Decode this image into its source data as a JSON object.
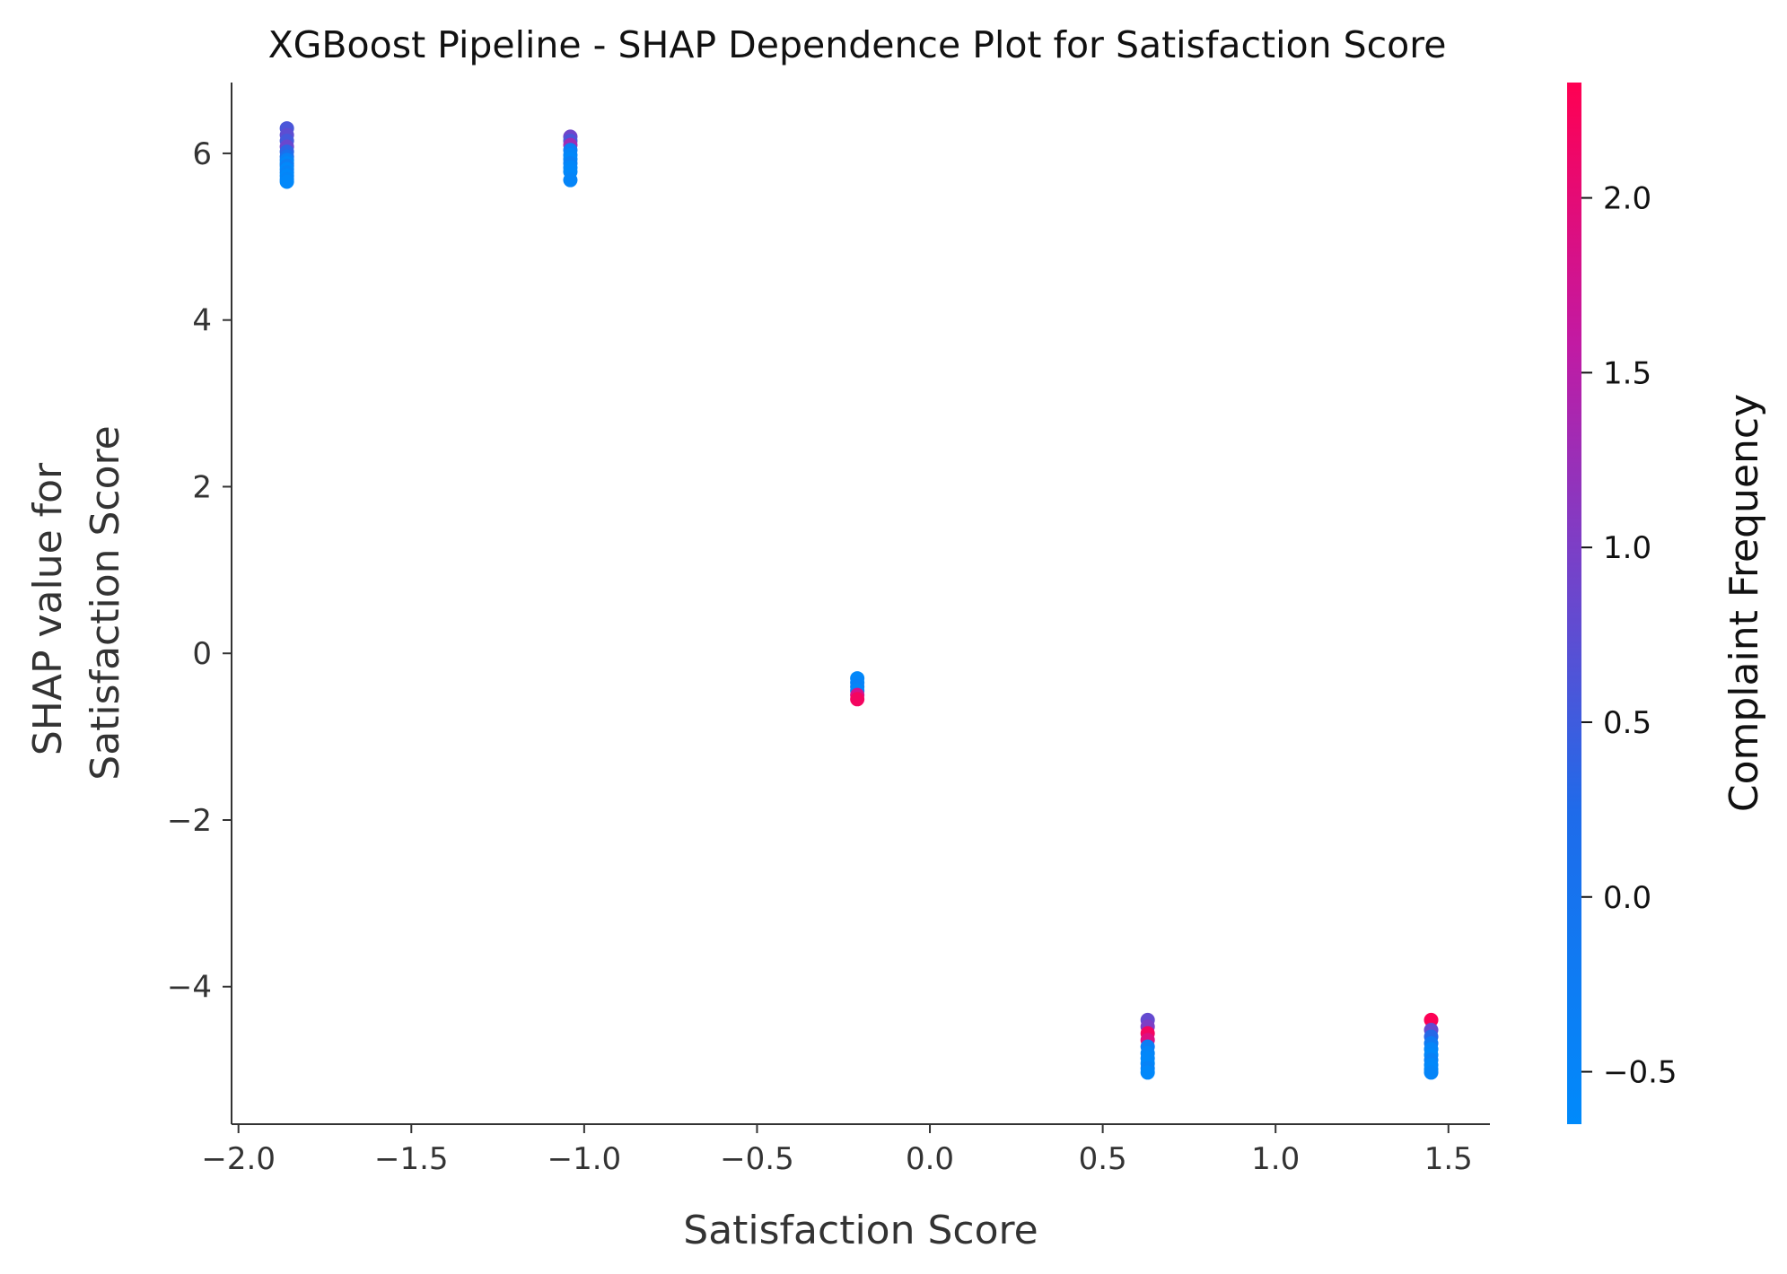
{
  "chart_data": {
    "type": "scatter",
    "title": "XGBoost Pipeline - SHAP Dependence Plot for Satisfaction Score",
    "xlabel": "Satisfaction Score",
    "ylabel": [
      "SHAP value for",
      "Satisfaction Score"
    ],
    "xlim": [
      -2.02,
      1.62
    ],
    "ylim": [
      -5.65,
      6.85
    ],
    "xticks": [
      -2.0,
      -1.5,
      -1.0,
      -0.5,
      0.0,
      0.5,
      1.0,
      1.5
    ],
    "xtick_labels": [
      "−2.0",
      "−1.5",
      "−1.0",
      "−0.5",
      "0.0",
      "0.5",
      "1.0",
      "1.5"
    ],
    "yticks": [
      6,
      4,
      2,
      0,
      -2,
      -4
    ],
    "ytick_labels": [
      "6",
      "4",
      "2",
      "0",
      "−2",
      "−4"
    ],
    "grid": false,
    "colorbar": {
      "label": "Complaint Frequency",
      "range": [
        -0.65,
        2.33
      ],
      "ticks": [
        2.0,
        1.5,
        1.0,
        0.5,
        0.0,
        -0.5
      ],
      "tick_labels": [
        "2.0",
        "1.5",
        "1.0",
        "0.5",
        "0.0",
        "−0.5"
      ],
      "colors": [
        "#008afb",
        "#ff0052"
      ]
    },
    "points": [
      {
        "x": -1.86,
        "y": 6.3,
        "c": 0.6
      },
      {
        "x": -1.86,
        "y": 6.22,
        "c": 0.75
      },
      {
        "x": -1.86,
        "y": 6.15,
        "c": 0.55
      },
      {
        "x": -1.86,
        "y": 6.08,
        "c": 0.85
      },
      {
        "x": -1.86,
        "y": 6.02,
        "c": 0.35
      },
      {
        "x": -1.86,
        "y": 5.96,
        "c": 0.1
      },
      {
        "x": -1.86,
        "y": 5.92,
        "c": -0.4
      },
      {
        "x": -1.86,
        "y": 5.88,
        "c": -0.55
      },
      {
        "x": -1.86,
        "y": 5.85,
        "c": -0.3
      },
      {
        "x": -1.86,
        "y": 5.81,
        "c": -0.6
      },
      {
        "x": -1.86,
        "y": 5.77,
        "c": -0.45
      },
      {
        "x": -1.86,
        "y": 5.73,
        "c": -0.6
      },
      {
        "x": -1.86,
        "y": 5.69,
        "c": -0.5
      },
      {
        "x": -1.86,
        "y": 5.66,
        "c": -0.6
      },
      {
        "x": -1.04,
        "y": 6.2,
        "c": 0.9
      },
      {
        "x": -1.04,
        "y": 6.15,
        "c": 0.6
      },
      {
        "x": -1.04,
        "y": 6.1,
        "c": 1.3
      },
      {
        "x": -1.04,
        "y": 6.04,
        "c": -0.3
      },
      {
        "x": -1.04,
        "y": 5.98,
        "c": -0.5
      },
      {
        "x": -1.04,
        "y": 5.93,
        "c": -0.6
      },
      {
        "x": -1.04,
        "y": 5.88,
        "c": -0.4
      },
      {
        "x": -1.04,
        "y": 5.83,
        "c": -0.55
      },
      {
        "x": -1.04,
        "y": 5.78,
        "c": -0.6
      },
      {
        "x": -1.04,
        "y": 5.68,
        "c": -0.5
      },
      {
        "x": -0.21,
        "y": -0.3,
        "c": -0.6
      },
      {
        "x": -0.21,
        "y": -0.35,
        "c": -0.5
      },
      {
        "x": -0.21,
        "y": -0.4,
        "c": -0.4
      },
      {
        "x": -0.21,
        "y": -0.45,
        "c": -0.55
      },
      {
        "x": -0.21,
        "y": -0.5,
        "c": 1.8
      },
      {
        "x": -0.21,
        "y": -0.55,
        "c": 2.2
      },
      {
        "x": 0.63,
        "y": -4.4,
        "c": 0.8
      },
      {
        "x": 0.63,
        "y": -4.48,
        "c": 1.0
      },
      {
        "x": 0.63,
        "y": -4.56,
        "c": 2.2
      },
      {
        "x": 0.63,
        "y": -4.64,
        "c": 1.9
      },
      {
        "x": 0.63,
        "y": -4.72,
        "c": -0.3
      },
      {
        "x": 0.63,
        "y": -4.8,
        "c": -0.5
      },
      {
        "x": 0.63,
        "y": -4.86,
        "c": -0.55
      },
      {
        "x": 0.63,
        "y": -4.92,
        "c": -0.6
      },
      {
        "x": 0.63,
        "y": -4.98,
        "c": -0.45
      },
      {
        "x": 0.63,
        "y": -5.03,
        "c": -0.6
      },
      {
        "x": 1.45,
        "y": -4.4,
        "c": 2.3
      },
      {
        "x": 1.45,
        "y": -4.52,
        "c": 0.8
      },
      {
        "x": 1.45,
        "y": -4.6,
        "c": 0.3
      },
      {
        "x": 1.45,
        "y": -4.68,
        "c": -0.2
      },
      {
        "x": 1.45,
        "y": -4.75,
        "c": -0.5
      },
      {
        "x": 1.45,
        "y": -4.82,
        "c": -0.6
      },
      {
        "x": 1.45,
        "y": -4.88,
        "c": -0.4
      },
      {
        "x": 1.45,
        "y": -4.94,
        "c": -0.55
      },
      {
        "x": 1.45,
        "y": -4.99,
        "c": -0.6
      },
      {
        "x": 1.45,
        "y": -5.03,
        "c": -0.5
      }
    ]
  }
}
